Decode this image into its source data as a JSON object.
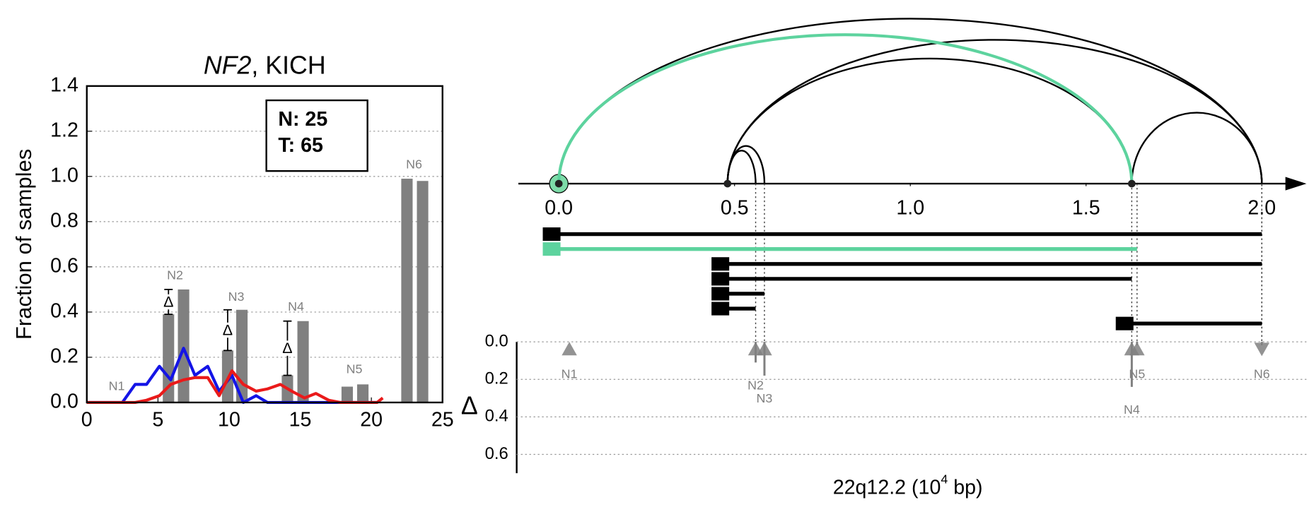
{
  "chart_data": [
    {
      "type": "bar",
      "title_parts": [
        "NF2",
        ", KICH"
      ],
      "ylabel": "Fraction of samples",
      "xlim": [
        0,
        25
      ],
      "xticks": [
        0,
        5,
        10,
        15,
        20,
        25
      ],
      "ylim": [
        0,
        1.4
      ],
      "yticks": [
        {
          "value": 0,
          "label": "0.0"
        },
        0.2,
        0.4,
        0.6,
        0.8,
        {
          "value": 1,
          "label": "1.0"
        },
        1.2,
        1.4
      ],
      "grid": true,
      "legend_box": [
        "N: 25",
        "T: 65"
      ],
      "bars": {
        "color": "#808080",
        "x": [
          5.74,
          6.8,
          9.9,
          10.9,
          14.1,
          15.2,
          18.3,
          19.4,
          22.5,
          23.6
        ],
        "values": [
          0.39,
          0.5,
          0.23,
          0.41,
          0.12,
          0.36,
          0.07,
          0.08,
          0.99,
          0.98
        ]
      },
      "x": [
        0,
        0.85,
        1.7,
        2.5,
        3.4,
        4.2,
        5.1,
        5.9,
        6.8,
        7.6,
        8.5,
        9.3,
        10.2,
        11,
        11.9,
        12.7,
        13.6,
        14.4,
        15.3,
        16.1,
        17,
        17.8,
        18.7,
        19.5,
        20.4,
        20.8
      ],
      "series": [
        {
          "color": "#1414e6",
          "values": [
            0,
            0,
            0,
            0,
            0.08,
            0.08,
            0.16,
            0.1,
            0.24,
            0.12,
            0.16,
            0.05,
            0.12,
            0,
            0.03,
            0,
            0,
            0,
            0,
            0,
            0,
            0,
            0,
            0,
            0,
            null
          ]
        },
        {
          "color": "#ea1a1a",
          "values": [
            0,
            0,
            0,
            0,
            0,
            0.01,
            0.03,
            0.08,
            0.1,
            0.11,
            0.11,
            0.03,
            0.14,
            0.08,
            0.05,
            0.06,
            0.08,
            0.05,
            0.02,
            0.04,
            0.01,
            0,
            0,
            0,
            0,
            0.02
          ]
        }
      ],
      "delta_symbol": "Δ",
      "delta_marks": [
        {
          "x": 5.74,
          "from": 0.39,
          "to": 0.5
        },
        {
          "x": 9.9,
          "from": 0.23,
          "to": 0.41
        },
        {
          "x": 14.1,
          "from": 0.12,
          "to": 0.36
        }
      ],
      "annotations": [
        {
          "text": "N1",
          "x": 2.1,
          "y": 0.07
        },
        {
          "text": "N2",
          "x": 6.2,
          "y": 0.56
        },
        {
          "text": "N3",
          "x": 10.5,
          "y": 0.465
        },
        {
          "text": "N4",
          "x": 14.7,
          "y": 0.42
        },
        {
          "text": "N5",
          "x": 18.8,
          "y": 0.145
        },
        {
          "text": "N6",
          "x": 23.0,
          "y": 1.05
        }
      ]
    },
    {
      "type": "arc",
      "xlim": [
        -0.115,
        2.115
      ],
      "xticks": [
        {
          "value": 0,
          "label": "0.0"
        },
        0.5,
        {
          "value": 1,
          "label": "1.0"
        },
        1.5,
        {
          "value": 2,
          "label": "2.0"
        }
      ],
      "nodes": [
        0,
        0.48,
        1.63
      ],
      "highlight": {
        "node": 0,
        "color": "#7ddba8"
      },
      "arcs": [
        {
          "start": 0,
          "end": 2.0,
          "color": "#000000"
        },
        {
          "start": 0.48,
          "end": 2.0,
          "color": "#000000"
        },
        {
          "start": 0.48,
          "end": 1.63,
          "color": "#000000"
        },
        {
          "start": 0.48,
          "end": 0.585,
          "color": "#000000"
        },
        {
          "start": 0.48,
          "end": 0.56,
          "color": "#000000"
        },
        {
          "start": 1.63,
          "end": 2.0,
          "color": "#000000"
        },
        {
          "start": 0,
          "end": 1.63,
          "color": "#5dd39e"
        }
      ],
      "segments": [
        {
          "start": 0,
          "end": 2.0,
          "color": "#000000"
        },
        {
          "start": 0,
          "end": 1.645,
          "color": "#5dd39e"
        },
        {
          "start": 0.48,
          "end": 2.0,
          "color": "#000000"
        },
        {
          "start": 0.48,
          "end": 1.63,
          "color": "#000000"
        },
        {
          "start": 0.48,
          "end": 0.585,
          "color": "#000000"
        },
        {
          "start": 0.48,
          "end": 0.56,
          "color": "#000000"
        },
        {
          "start": 1.63,
          "end": 2.0,
          "color": "#000000"
        }
      ]
    },
    {
      "type": "scatter",
      "xlim": [
        -0.115,
        2.115
      ],
      "ylim": [
        0,
        0.7
      ],
      "yticks": [
        {
          "value": 0,
          "label": "0.0"
        },
        0.2,
        0.4,
        0.6
      ],
      "ylabel": "Δ",
      "xlabel_parts": [
        "22q12.2 (10",
        "4",
        " bp)"
      ],
      "color": "#808080",
      "points": [
        {
          "label": "N1",
          "x": 0.03,
          "delta": 0,
          "direction": "up"
        },
        {
          "label": "N2",
          "x": 0.56,
          "delta": 0.11,
          "direction": "up"
        },
        {
          "label": "N3",
          "x": 0.585,
          "delta": 0.18,
          "direction": "up"
        },
        {
          "label": "N4",
          "x": 1.63,
          "delta": 0.24,
          "direction": "up"
        },
        {
          "label": "N5",
          "x": 1.645,
          "delta": 0.01,
          "direction": "up"
        },
        {
          "label": "N6",
          "x": 2.0,
          "delta": 0.01,
          "direction": "down"
        }
      ]
    }
  ]
}
